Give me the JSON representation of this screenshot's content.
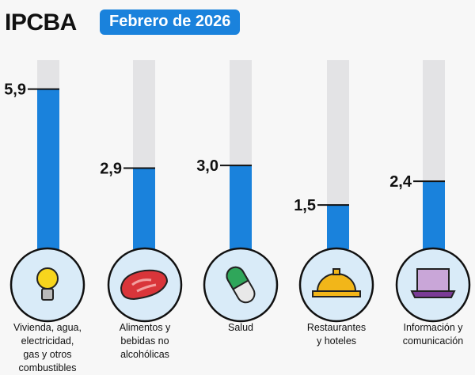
{
  "header": {
    "title": "IPCBA",
    "period": "Febrero de 2026"
  },
  "colors": {
    "bar": "#1a82dc",
    "track": "#e3e3e5",
    "circle": "#d9ebf8"
  },
  "chart_data": {
    "type": "bar",
    "categories": [
      "Vivienda, agua, electricidad, gas y otros combustibles",
      "Alimentos y bebidas no alcohólicas",
      "Salud",
      "Restaurantes y hoteles",
      "Información y comunicación"
    ],
    "category_lines": [
      [
        "Vivienda, agua,",
        "electricidad,",
        "gas y otros",
        "combustibles"
      ],
      [
        "Alimentos y",
        "bebidas no",
        "alcohólicas"
      ],
      [
        "Salud"
      ],
      [
        "Restaurantes",
        "y hoteles"
      ],
      [
        "Información y",
        "comunicación"
      ]
    ],
    "values": [
      5.9,
      2.9,
      3.0,
      1.5,
      2.4
    ],
    "value_labels": [
      "5,9",
      "2,9",
      "3,0",
      "1,5",
      "2,4"
    ],
    "icons": [
      "lightbulb-icon",
      "meat-icon",
      "pill-icon",
      "service-bell-icon",
      "laptop-icon"
    ],
    "ylim": [
      0,
      7
    ],
    "grid": false
  }
}
